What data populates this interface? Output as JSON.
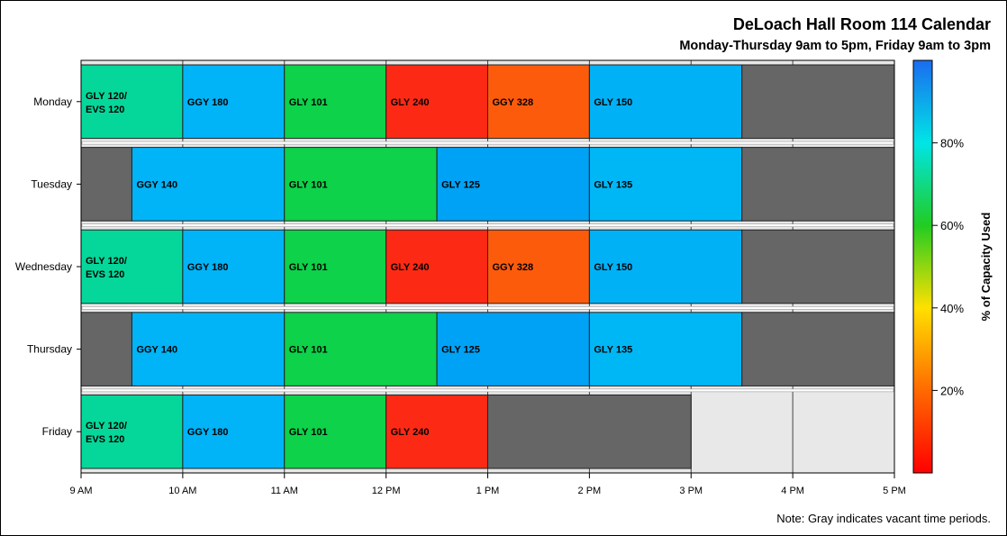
{
  "chart_data": {
    "type": "gantt",
    "title": "DeLoach Hall Room 114 Calendar",
    "subtitle": "Monday-Thursday 9am to 5pm, Friday 9am to 3pm",
    "x_start_hour": 9,
    "x_end_hour": 17,
    "x_ticks": [
      "9 AM",
      "10 AM",
      "11 AM",
      "12 PM",
      "1 PM",
      "2 PM",
      "3 PM",
      "4 PM",
      "5 PM"
    ],
    "days": [
      {
        "name": "Monday",
        "segments": [
          {
            "label": [
              "GLY 120/",
              "EVS 120"
            ],
            "start": 9,
            "end": 10,
            "color": "#05d79a"
          },
          {
            "label": [
              "GGY 180"
            ],
            "start": 10,
            "end": 11,
            "color": "#00b4f7"
          },
          {
            "label": [
              "GLY 101"
            ],
            "start": 11,
            "end": 12,
            "color": "#0dd24a"
          },
          {
            "label": [
              "GLY 240"
            ],
            "start": 12,
            "end": 13,
            "color": "#fc2a14"
          },
          {
            "label": [
              "GGY 328"
            ],
            "start": 13,
            "end": 14,
            "color": "#fd5b0c"
          },
          {
            "label": [
              "GLY 150"
            ],
            "start": 14,
            "end": 15.5,
            "color": "#00b1f6"
          },
          {
            "label": [],
            "start": 15.5,
            "end": 17,
            "color": "#666666",
            "vacant": true
          }
        ]
      },
      {
        "name": "Tuesday",
        "segments": [
          {
            "label": [],
            "start": 9,
            "end": 9.5,
            "color": "#666666",
            "vacant": true
          },
          {
            "label": [
              "GGY 140"
            ],
            "start": 9.5,
            "end": 11,
            "color": "#00b4f7"
          },
          {
            "label": [
              "GLY 101"
            ],
            "start": 11,
            "end": 12.5,
            "color": "#0dd24a"
          },
          {
            "label": [
              "GLY 125"
            ],
            "start": 12.5,
            "end": 14,
            "color": "#00a2f6"
          },
          {
            "label": [
              "GLY 135"
            ],
            "start": 14,
            "end": 15.5,
            "color": "#00b7f6"
          },
          {
            "label": [],
            "start": 15.5,
            "end": 17,
            "color": "#666666",
            "vacant": true
          }
        ]
      },
      {
        "name": "Wednesday",
        "segments": [
          {
            "label": [
              "GLY 120/",
              "EVS 120"
            ],
            "start": 9,
            "end": 10,
            "color": "#05d79a"
          },
          {
            "label": [
              "GGY 180"
            ],
            "start": 10,
            "end": 11,
            "color": "#00b4f7"
          },
          {
            "label": [
              "GLY 101"
            ],
            "start": 11,
            "end": 12,
            "color": "#0dd24a"
          },
          {
            "label": [
              "GLY 240"
            ],
            "start": 12,
            "end": 13,
            "color": "#fc2a14"
          },
          {
            "label": [
              "GGY 328"
            ],
            "start": 13,
            "end": 14,
            "color": "#fd5b0c"
          },
          {
            "label": [
              "GLY 150"
            ],
            "start": 14,
            "end": 15.5,
            "color": "#00b1f6"
          },
          {
            "label": [],
            "start": 15.5,
            "end": 17,
            "color": "#666666",
            "vacant": true
          }
        ]
      },
      {
        "name": "Thursday",
        "segments": [
          {
            "label": [],
            "start": 9,
            "end": 9.5,
            "color": "#666666",
            "vacant": true
          },
          {
            "label": [
              "GGY 140"
            ],
            "start": 9.5,
            "end": 11,
            "color": "#00b4f7"
          },
          {
            "label": [
              "GLY 101"
            ],
            "start": 11,
            "end": 12.5,
            "color": "#0dd24a"
          },
          {
            "label": [
              "GLY 125"
            ],
            "start": 12.5,
            "end": 14,
            "color": "#00a2f6"
          },
          {
            "label": [
              "GLY 135"
            ],
            "start": 14,
            "end": 15.5,
            "color": "#00b7f6"
          },
          {
            "label": [],
            "start": 15.5,
            "end": 17,
            "color": "#666666",
            "vacant": true
          }
        ]
      },
      {
        "name": "Friday",
        "segments": [
          {
            "label": [
              "GLY 120/",
              "EVS 120"
            ],
            "start": 9,
            "end": 10,
            "color": "#05d79a"
          },
          {
            "label": [
              "GGY 180"
            ],
            "start": 10,
            "end": 11,
            "color": "#00b4f7"
          },
          {
            "label": [
              "GLY 101"
            ],
            "start": 11,
            "end": 12,
            "color": "#0dd24a"
          },
          {
            "label": [
              "GLY 240"
            ],
            "start": 12,
            "end": 13,
            "color": "#fc2a14"
          },
          {
            "label": [],
            "start": 13,
            "end": 15,
            "color": "#666666",
            "vacant": true
          }
        ]
      }
    ],
    "colorbar": {
      "label": "% of Capacity Used",
      "min": 0,
      "max": 100,
      "ticks": [
        {
          "value": 20,
          "label": "20%"
        },
        {
          "value": 40,
          "label": "40%"
        },
        {
          "value": 60,
          "label": "60%"
        },
        {
          "value": 80,
          "label": "80%"
        }
      ],
      "stops": [
        "#ff0000",
        "#ff6a00",
        "#ffe000",
        "#22cc22",
        "#00e5e5",
        "#1a6cf0"
      ]
    },
    "note": "Note: Gray indicates vacant time periods."
  }
}
